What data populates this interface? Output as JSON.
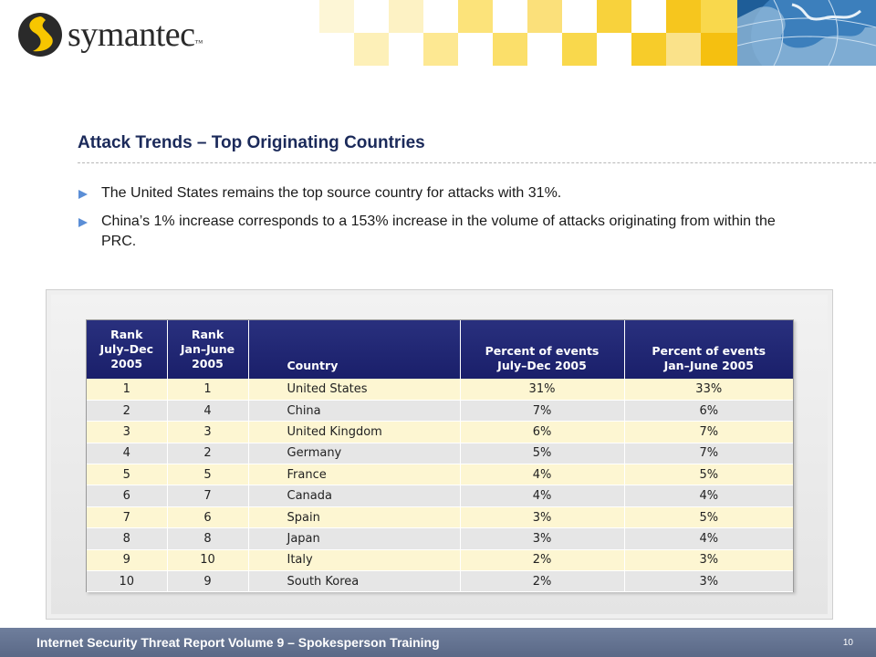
{
  "logo": {
    "wordmark": "symantec",
    "tm": "™"
  },
  "slide": {
    "title": "Attack Trends – Top Originating Countries",
    "bullets": [
      "The United States remains the top source country for attacks with 31%.",
      "China’s 1% increase corresponds to a 153% increase in the volume of attacks originating from within the PRC."
    ]
  },
  "table": {
    "headers": {
      "rank_jul": [
        "Rank",
        "July–Dec",
        "2005"
      ],
      "rank_jan": [
        "Rank",
        "Jan–June",
        "2005"
      ],
      "country": "Country",
      "pct_jul": [
        "Percent of events",
        "July–Dec 2005"
      ],
      "pct_jan": [
        "Percent of events",
        "Jan–June 2005"
      ]
    },
    "rows": [
      {
        "rank_jul": "1",
        "rank_jan": "1",
        "country": "United States",
        "pct_jul": "31%",
        "pct_jan": "33%"
      },
      {
        "rank_jul": "2",
        "rank_jan": "4",
        "country": "China",
        "pct_jul": "7%",
        "pct_jan": "6%"
      },
      {
        "rank_jul": "3",
        "rank_jan": "3",
        "country": "United Kingdom",
        "pct_jul": "6%",
        "pct_jan": "7%"
      },
      {
        "rank_jul": "4",
        "rank_jan": "2",
        "country": "Germany",
        "pct_jul": "5%",
        "pct_jan": "7%"
      },
      {
        "rank_jul": "5",
        "rank_jan": "5",
        "country": "France",
        "pct_jul": "4%",
        "pct_jan": "5%"
      },
      {
        "rank_jul": "6",
        "rank_jan": "7",
        "country": "Canada",
        "pct_jul": "4%",
        "pct_jan": "4%"
      },
      {
        "rank_jul": "7",
        "rank_jan": "6",
        "country": "Spain",
        "pct_jul": "3%",
        "pct_jan": "5%"
      },
      {
        "rank_jul": "8",
        "rank_jan": "8",
        "country": "Japan",
        "pct_jul": "3%",
        "pct_jan": "4%"
      },
      {
        "rank_jul": "9",
        "rank_jan": "10",
        "country": "Italy",
        "pct_jul": "2%",
        "pct_jan": "3%"
      },
      {
        "rank_jul": "10",
        "rank_jan": "9",
        "country": "South Korea",
        "pct_jul": "2%",
        "pct_jan": "3%"
      }
    ]
  },
  "footer": {
    "text": "Internet Security Threat Report Volume 9 – Spokesperson Training",
    "page": "10"
  },
  "colors": {
    "title": "#1b2a5a",
    "bullet_icon": "#5b8ed6",
    "table_header": "#1f2573",
    "row_odd": "#fdf6d2",
    "row_even": "#e6e6e6",
    "footer": "#65749a",
    "logo_yellow": "#f7c600"
  },
  "icons": {
    "logo_mark": "symantec-logo-icon",
    "bullet": "triangle-bullet-icon",
    "globe": "globe-image"
  }
}
